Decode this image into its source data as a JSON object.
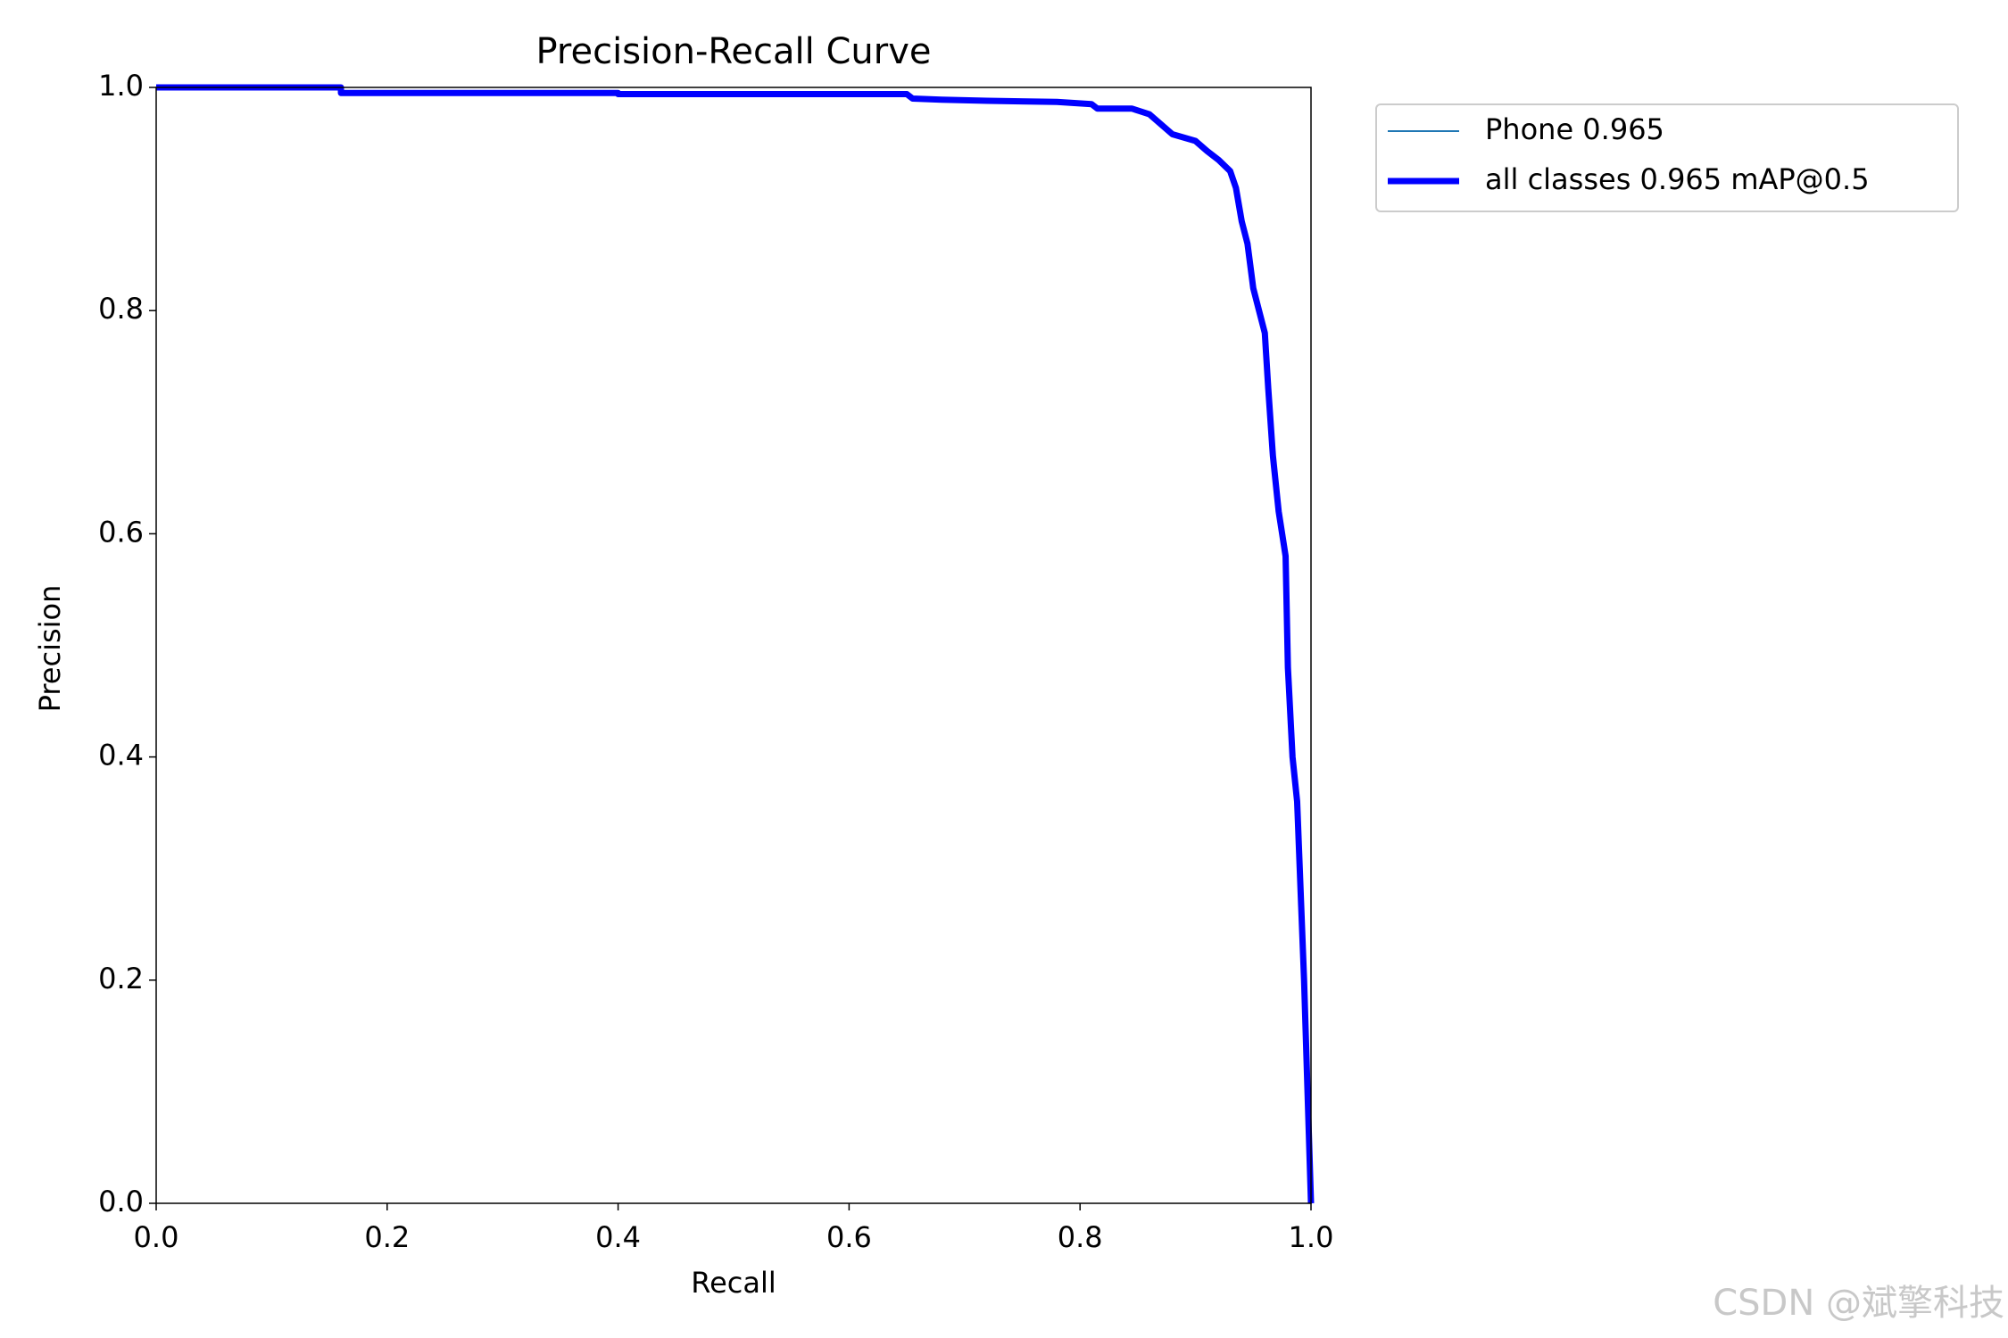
{
  "chart_data": {
    "type": "line",
    "title": "Precision-Recall Curve",
    "x_label": "Recall",
    "y_label": "Precision",
    "x": [
      0,
      0.16,
      0.16,
      0.4,
      0.4,
      0.65,
      0.655,
      0.68,
      0.72,
      0.78,
      0.81,
      0.815,
      0.845,
      0.86,
      0.87,
      0.88,
      0.9,
      0.91,
      0.92,
      0.93,
      0.935,
      0.94,
      0.945,
      0.95,
      0.955,
      0.96,
      0.963,
      0.967,
      0.972,
      0.975,
      0.978,
      0.98,
      0.984,
      0.988,
      0.994,
      1.0
    ],
    "series": [
      {
        "name": "Phone 0.965",
        "color": "#1f77b4",
        "width": 2,
        "values": [
          1.0,
          1.0,
          0.995,
          0.995,
          0.994,
          0.994,
          0.99,
          0.989,
          0.988,
          0.987,
          0.985,
          0.981,
          0.981,
          0.976,
          0.967,
          0.958,
          0.952,
          0.943,
          0.935,
          0.925,
          0.91,
          0.88,
          0.86,
          0.82,
          0.8,
          0.78,
          0.73,
          0.67,
          0.62,
          0.6,
          0.58,
          0.48,
          0.4,
          0.36,
          0.2,
          0.0
        ]
      },
      {
        "name": "all classes 0.965 mAP@0.5",
        "color": "#0000ff",
        "width": 7,
        "values": [
          1.0,
          1.0,
          0.995,
          0.995,
          0.994,
          0.994,
          0.99,
          0.989,
          0.988,
          0.987,
          0.985,
          0.981,
          0.981,
          0.976,
          0.967,
          0.958,
          0.952,
          0.943,
          0.935,
          0.925,
          0.91,
          0.88,
          0.86,
          0.82,
          0.8,
          0.78,
          0.73,
          0.67,
          0.62,
          0.6,
          0.58,
          0.48,
          0.4,
          0.36,
          0.2,
          0.0
        ]
      }
    ],
    "xlim": [
      0,
      1
    ],
    "ylim": [
      0,
      1
    ],
    "xticks": [
      {
        "value": 0,
        "label": "0.0"
      },
      0.2,
      0.4,
      0.6,
      0.8,
      {
        "value": 1,
        "label": "1.0"
      }
    ],
    "yticks": [
      {
        "value": 0,
        "label": "0.0"
      },
      0.2,
      0.4,
      0.6,
      0.8,
      {
        "value": 1,
        "label": "1.0"
      }
    ],
    "grid": false,
    "legend": "outside-right"
  },
  "watermark": "CSDN @斌擎科技"
}
